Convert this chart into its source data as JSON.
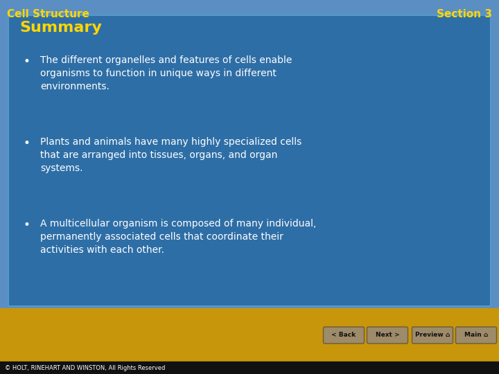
{
  "header_text_left": "Cell Structure",
  "header_text_right": "Section 3",
  "header_text_color": "#FFD700",
  "header_font_size": 11,
  "header_bg_top": "#6aaad8",
  "header_bg_bottom": "#5590c8",
  "content_bg_color": "#2E6EA6",
  "content_border_color": "#5599CC",
  "summary_title": "Summary",
  "summary_title_color": "#FFD700",
  "summary_title_size": 16,
  "bullet_text_color": "#FFFFFF",
  "bullet_font_size": 10,
  "bullets": [
    "The different organelles and features of cells enable\norganisms to function in unique ways in different\nenvironments.",
    "Plants and animals have many highly specialized cells\nthat are arranged into tissues, organs, and organ\nsystems.",
    "A multicellular organism is composed of many individual,\npermanently associated cells that coordinate their\nactivities with each other."
  ],
  "footer_bg_color": "#B8860B",
  "footer_text": "© HOLT, RINEHART AND WINSTON, All Rights Reserved",
  "footer_text_color": "#FFFFFF",
  "footer_font_size": 6,
  "nav_buttons": [
    "< Back",
    "Next >",
    "Preview ⌂",
    "Main ⌂"
  ],
  "nav_button_bg": "#9E8B6A",
  "nav_button_border": "#6B5B35",
  "background_sky_color": "#5B8FC4",
  "background_ground_color": "#C8960A"
}
